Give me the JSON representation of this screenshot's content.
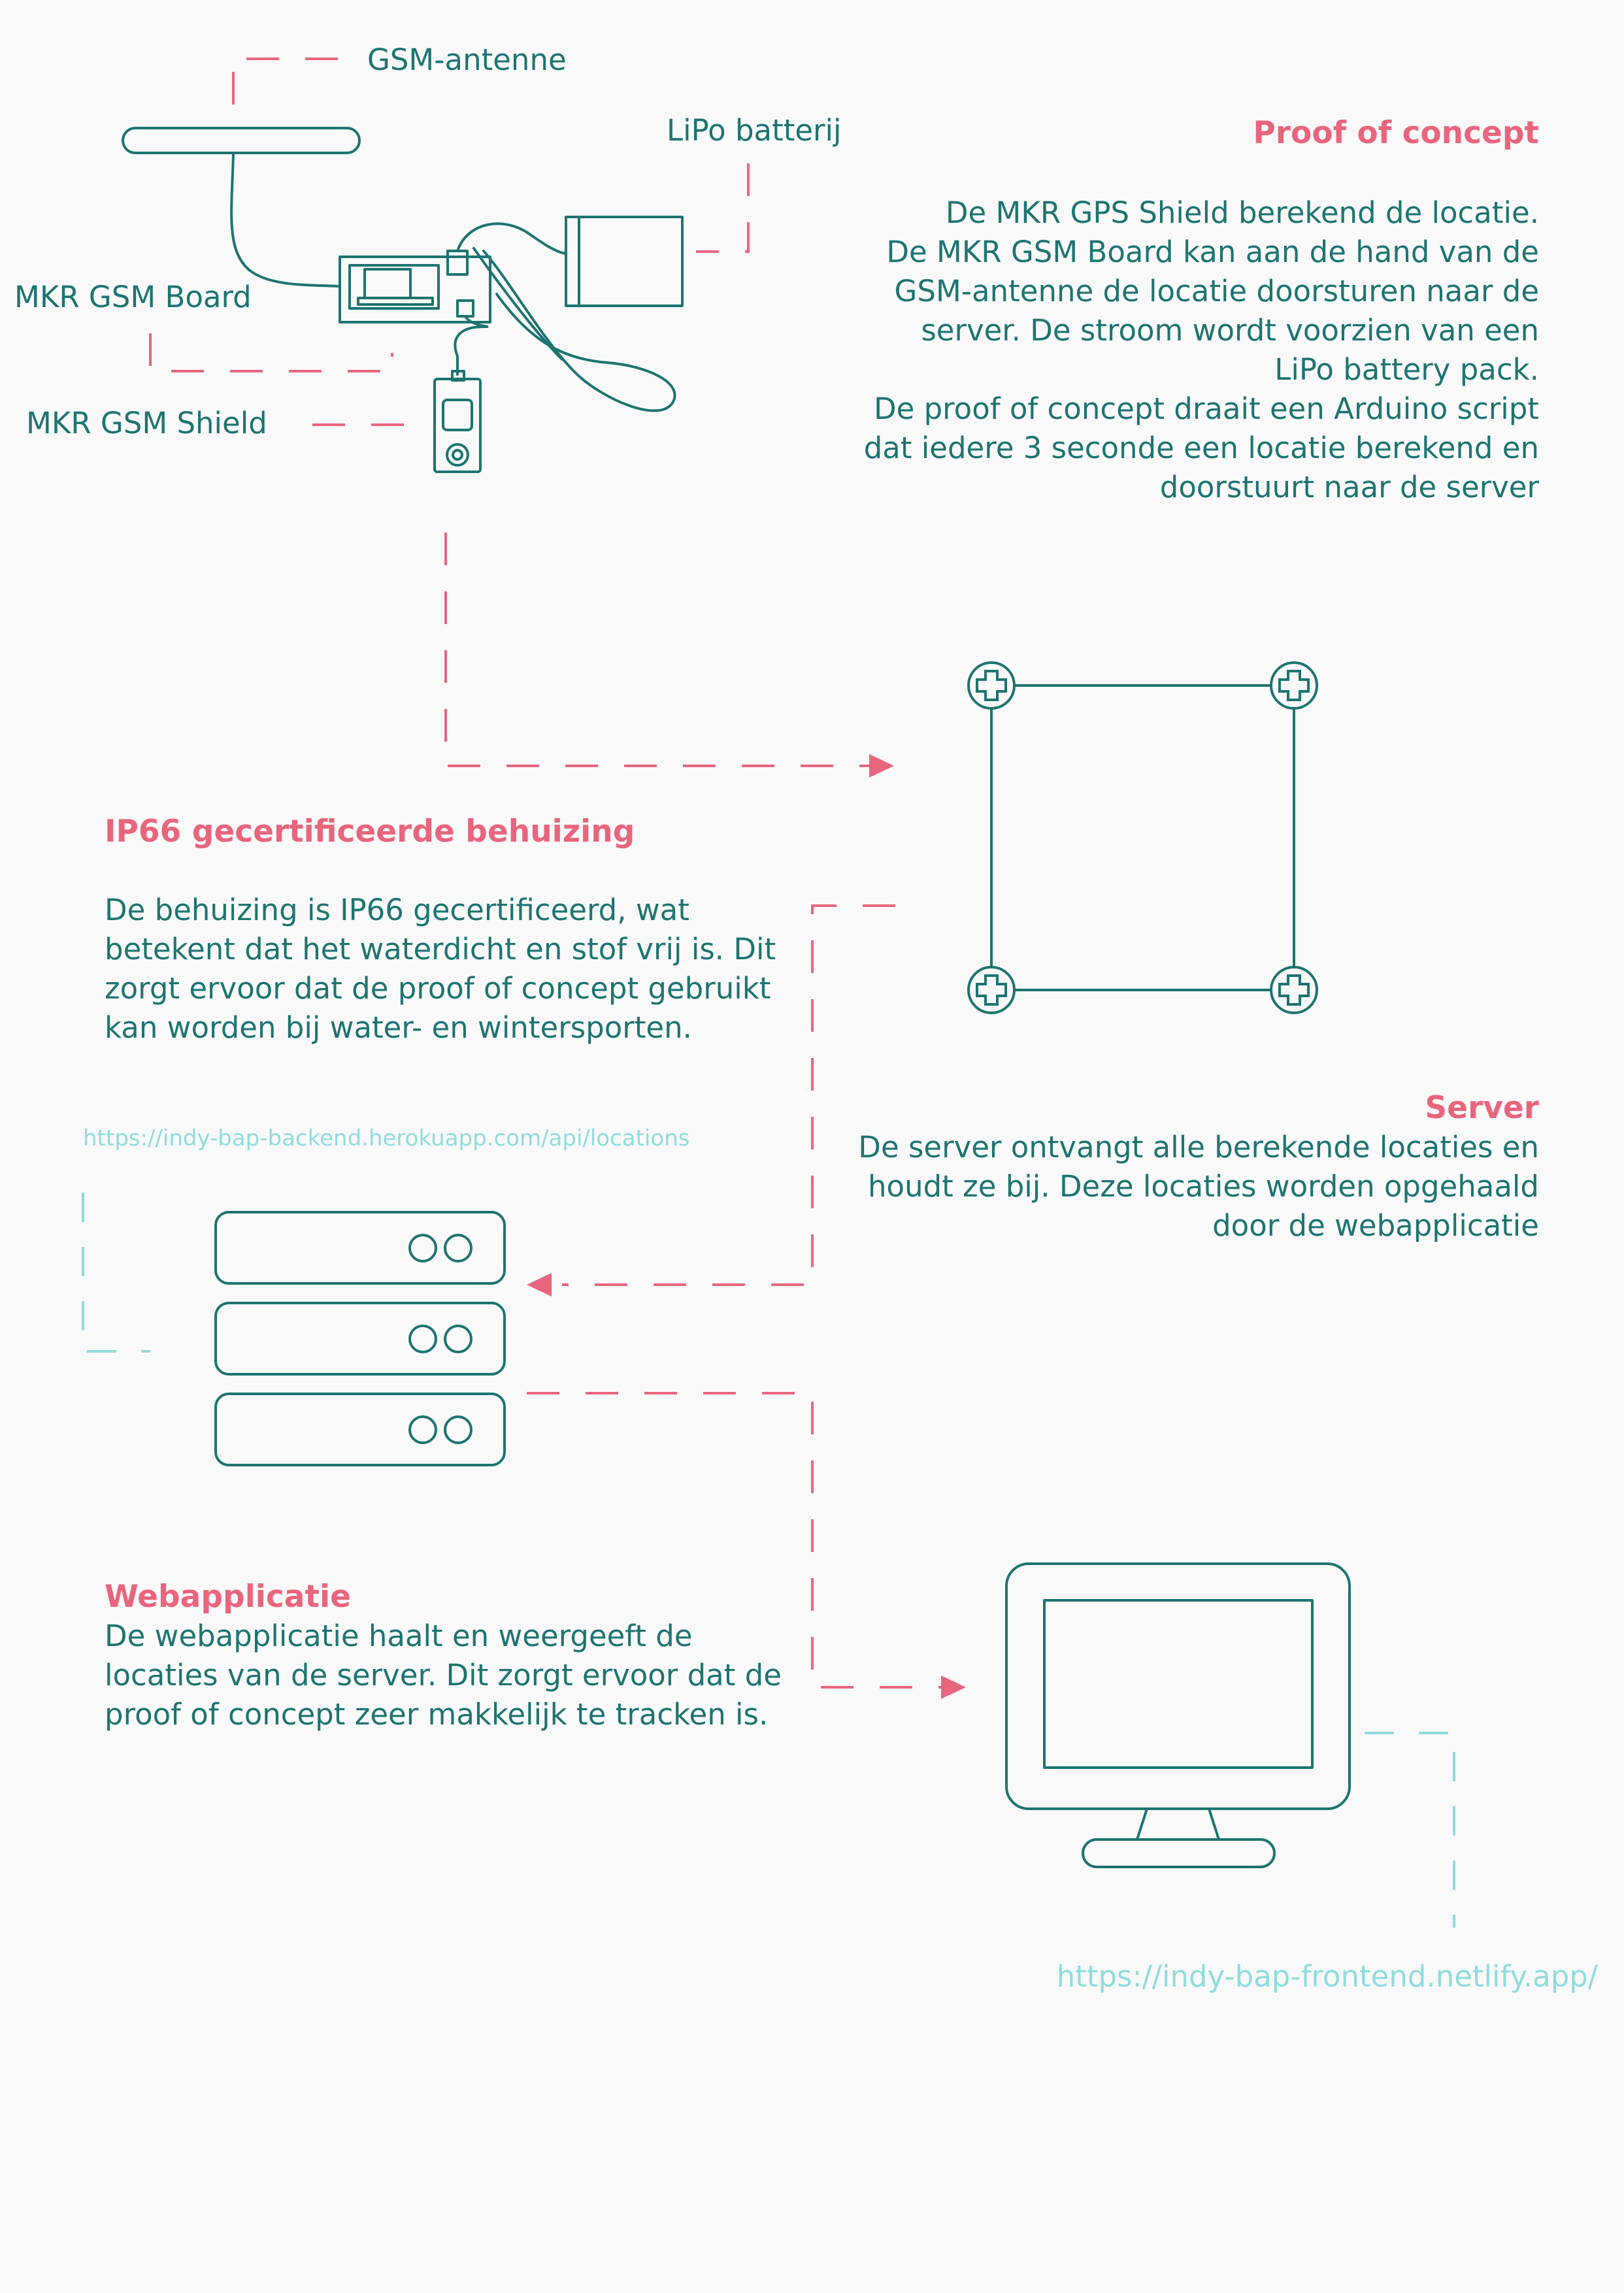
{
  "colors": {
    "teal": "#1d7470",
    "pink": "#e8657e",
    "link": "#8fdcdc",
    "background": "#f9f9f9"
  },
  "labels": {
    "gsm_antenna": "GSM-antenne",
    "lipo_battery": "LiPo batterij",
    "mkr_gsm_board": "MKR GSM Board",
    "mkr_gsm_shield": "MKR GSM Shield"
  },
  "proof_of_concept": {
    "title": "Proof of concept",
    "text": "De MKR GPS Shield berekend de locatie.\nDe MKR GSM Board kan aan de hand van de\nGSM-antenne de locatie doorsturen naar de\nserver. De stroom wordt voorzien van een\nLiPo battery pack.\nDe proof of concept draait een Arduino script\ndat iedere 3 seconde een locatie berekend en\ndoorstuurt naar de server"
  },
  "enclosure": {
    "title": "IP66 gecertificeerde behuizing",
    "text": "De behuizing is IP66 gecertificeerd, wat\nbetekent dat het waterdicht en stof vrij is. Dit\nzorgt ervoor dat de proof of concept gebruikt\nkan worden bij water- en wintersporten."
  },
  "server": {
    "title": "Server",
    "text": "De server ontvangt alle berekende locaties en\nhoudt ze bij. Deze locaties worden opgehaald\ndoor de webapplicatie",
    "url": "https://indy-bap-backend.herokuapp.com/api/locations"
  },
  "webapp": {
    "title": "Webapplicatie",
    "text": "De webapplicatie haalt en weergeeft de\nlocaties van de server. Dit zorgt ervoor dat de\nproof of concept zeer makkelijk te tracken is.",
    "url": "https://indy-bap-frontend.netlify.app/"
  },
  "icons": [
    "gsm-antenna-icon",
    "lipo-battery-icon",
    "mkr-gsm-board-icon",
    "mkr-gsm-shield-icon",
    "enclosure-icon",
    "server-rack-icon",
    "monitor-icon"
  ]
}
